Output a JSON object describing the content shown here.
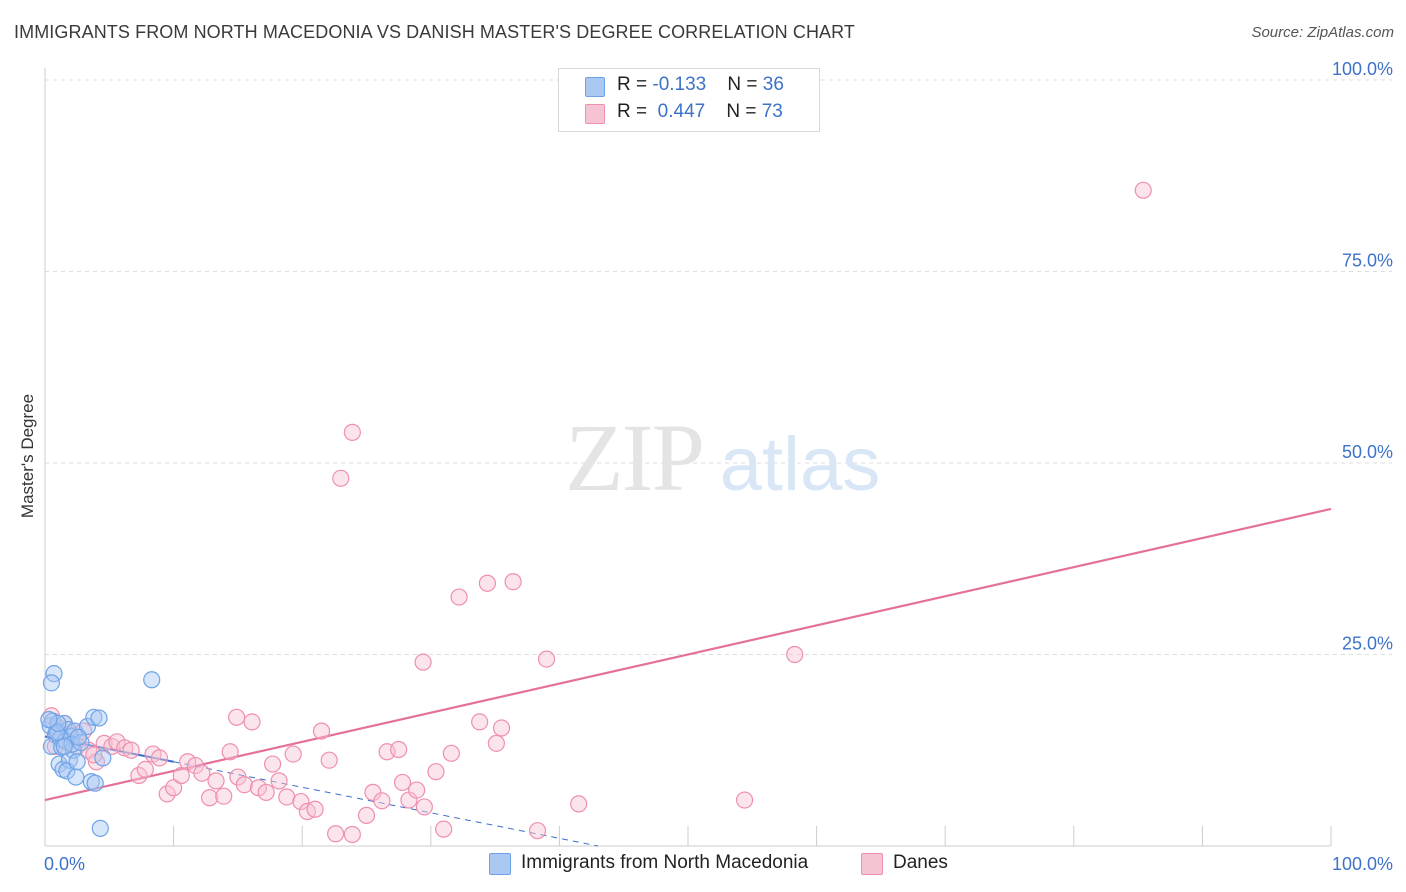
{
  "title": "IMMIGRANTS FROM NORTH MACEDONIA VS DANISH MASTER'S DEGREE CORRELATION CHART",
  "source": "Source: ZipAtlas.com",
  "watermark": {
    "zip": "ZIP",
    "atlas": "atlas"
  },
  "colors": {
    "blue": "#6fa3e8",
    "blue_fill": "#a9c8f2",
    "blue_line": "#3a6fc9",
    "pink": "#ef8fb0",
    "pink_fill": "#f6c3d3",
    "pink_line": "#e3719b",
    "axis_text": "#3d72c8",
    "grid": "#dddddd"
  },
  "legend_top": {
    "rows": [
      {
        "r_label": "R = ",
        "r_value": "-0.133",
        "n_label": "N = ",
        "n_value": "36",
        "series": "blue"
      },
      {
        "r_label": "R = ",
        "r_value": "0.447",
        "n_label": "N = ",
        "n_value": "73",
        "series": "pink"
      }
    ]
  },
  "legend_bottom": {
    "items": [
      {
        "label": "Immigrants from North Macedonia",
        "series": "blue"
      },
      {
        "label": "Danes",
        "series": "pink"
      }
    ]
  },
  "chart_data": {
    "type": "scatter",
    "title": "IMMIGRANTS FROM NORTH MACEDONIA VS DANISH MASTER'S DEGREE CORRELATION CHART",
    "xlabel": "",
    "ylabel": "Master's Degree",
    "xlim": [
      0,
      100
    ],
    "ylim": [
      0,
      100
    ],
    "x_tick_labels": [
      {
        "value": 0,
        "label": "0.0%"
      },
      {
        "value": 100,
        "label": "100.0%"
      }
    ],
    "y_tick_labels": [
      {
        "value": 25,
        "label": "25.0%"
      },
      {
        "value": 50,
        "label": "50.0%"
      },
      {
        "value": 75,
        "label": "75.0%"
      },
      {
        "value": 100,
        "label": "100.0%"
      }
    ],
    "grid": true,
    "series": [
      {
        "name": "Immigrants from North Macedonia",
        "color": "blue",
        "R": -0.133,
        "N": 36,
        "trend_solid": [
          [
            0,
            14.3
          ],
          [
            10,
            11.0
          ]
        ],
        "trend_dashed": [
          [
            10,
            11.0
          ],
          [
            43,
            0.0
          ]
        ],
        "points": [
          [
            0.4,
            15.7
          ],
          [
            0.6,
            16.3
          ],
          [
            0.8,
            14.5
          ],
          [
            0.5,
            13.0
          ],
          [
            1.0,
            15.0
          ],
          [
            1.2,
            14.0
          ],
          [
            0.7,
            22.5
          ],
          [
            0.5,
            21.3
          ],
          [
            1.5,
            16.0
          ],
          [
            1.8,
            15.2
          ],
          [
            2.0,
            14.3
          ],
          [
            1.3,
            12.9
          ],
          [
            1.6,
            13.7
          ],
          [
            2.3,
            15.0
          ],
          [
            1.1,
            10.7
          ],
          [
            1.4,
            10.0
          ],
          [
            1.9,
            11.2
          ],
          [
            2.2,
            12.5
          ],
          [
            1.7,
            9.8
          ],
          [
            2.1,
            13.3
          ],
          [
            2.5,
            11.0
          ],
          [
            2.4,
            9.0
          ],
          [
            2.8,
            13.5
          ],
          [
            3.3,
            15.6
          ],
          [
            3.8,
            16.8
          ],
          [
            3.6,
            8.4
          ],
          [
            4.2,
            16.7
          ],
          [
            3.9,
            8.2
          ],
          [
            4.5,
            11.5
          ],
          [
            8.3,
            21.7
          ],
          [
            4.3,
            2.3
          ],
          [
            0.9,
            14.8
          ],
          [
            1.0,
            16.0
          ],
          [
            0.3,
            16.5
          ],
          [
            2.6,
            14.2
          ],
          [
            1.5,
            13.0
          ]
        ]
      },
      {
        "name": "Danes",
        "color": "pink",
        "R": 0.447,
        "N": 73,
        "trend": [
          [
            0,
            6.0
          ],
          [
            100,
            44.0
          ]
        ],
        "points": [
          [
            85.4,
            85.6
          ],
          [
            23.9,
            54.0
          ],
          [
            23.0,
            48.0
          ],
          [
            36.4,
            34.5
          ],
          [
            34.4,
            34.3
          ],
          [
            32.2,
            32.5
          ],
          [
            39.0,
            24.4
          ],
          [
            29.4,
            24.0
          ],
          [
            58.3,
            25.0
          ],
          [
            0.5,
            17.0
          ],
          [
            1.0,
            15.5
          ],
          [
            1.5,
            16.0
          ],
          [
            2.0,
            14.5
          ],
          [
            2.5,
            13.0
          ],
          [
            3.0,
            15.0
          ],
          [
            3.4,
            12.5
          ],
          [
            4.0,
            11.0
          ],
          [
            4.6,
            13.4
          ],
          [
            5.2,
            13.0
          ],
          [
            5.6,
            13.6
          ],
          [
            6.2,
            12.8
          ],
          [
            6.7,
            12.5
          ],
          [
            7.3,
            9.2
          ],
          [
            7.8,
            10.0
          ],
          [
            8.4,
            12.0
          ],
          [
            8.9,
            11.5
          ],
          [
            9.5,
            6.8
          ],
          [
            10.0,
            7.6
          ],
          [
            10.6,
            9.2
          ],
          [
            11.1,
            11.0
          ],
          [
            11.7,
            10.5
          ],
          [
            12.2,
            9.5
          ],
          [
            12.8,
            6.3
          ],
          [
            13.3,
            8.5
          ],
          [
            13.9,
            6.5
          ],
          [
            14.4,
            12.3
          ],
          [
            15.0,
            9.0
          ],
          [
            15.5,
            8.0
          ],
          [
            16.1,
            16.2
          ],
          [
            16.6,
            7.6
          ],
          [
            17.2,
            7.0
          ],
          [
            17.7,
            10.7
          ],
          [
            18.2,
            8.5
          ],
          [
            18.8,
            6.4
          ],
          [
            19.3,
            12.0
          ],
          [
            19.9,
            5.8
          ],
          [
            20.4,
            4.5
          ],
          [
            21.0,
            4.8
          ],
          [
            21.5,
            15.0
          ],
          [
            22.1,
            11.2
          ],
          [
            22.6,
            1.6
          ],
          [
            23.9,
            1.5
          ],
          [
            25.0,
            4.0
          ],
          [
            25.5,
            7.0
          ],
          [
            26.2,
            5.9
          ],
          [
            26.6,
            12.3
          ],
          [
            27.5,
            12.6
          ],
          [
            27.8,
            8.3
          ],
          [
            28.3,
            6.0
          ],
          [
            28.9,
            7.3
          ],
          [
            29.5,
            5.1
          ],
          [
            30.4,
            9.7
          ],
          [
            31.0,
            2.2
          ],
          [
            31.6,
            12.1
          ],
          [
            33.8,
            16.2
          ],
          [
            35.1,
            13.4
          ],
          [
            35.5,
            15.4
          ],
          [
            38.3,
            2.0
          ],
          [
            41.5,
            5.5
          ],
          [
            54.4,
            6.0
          ],
          [
            0.8,
            13.0
          ],
          [
            3.8,
            11.9
          ],
          [
            14.9,
            16.8
          ]
        ]
      }
    ]
  }
}
